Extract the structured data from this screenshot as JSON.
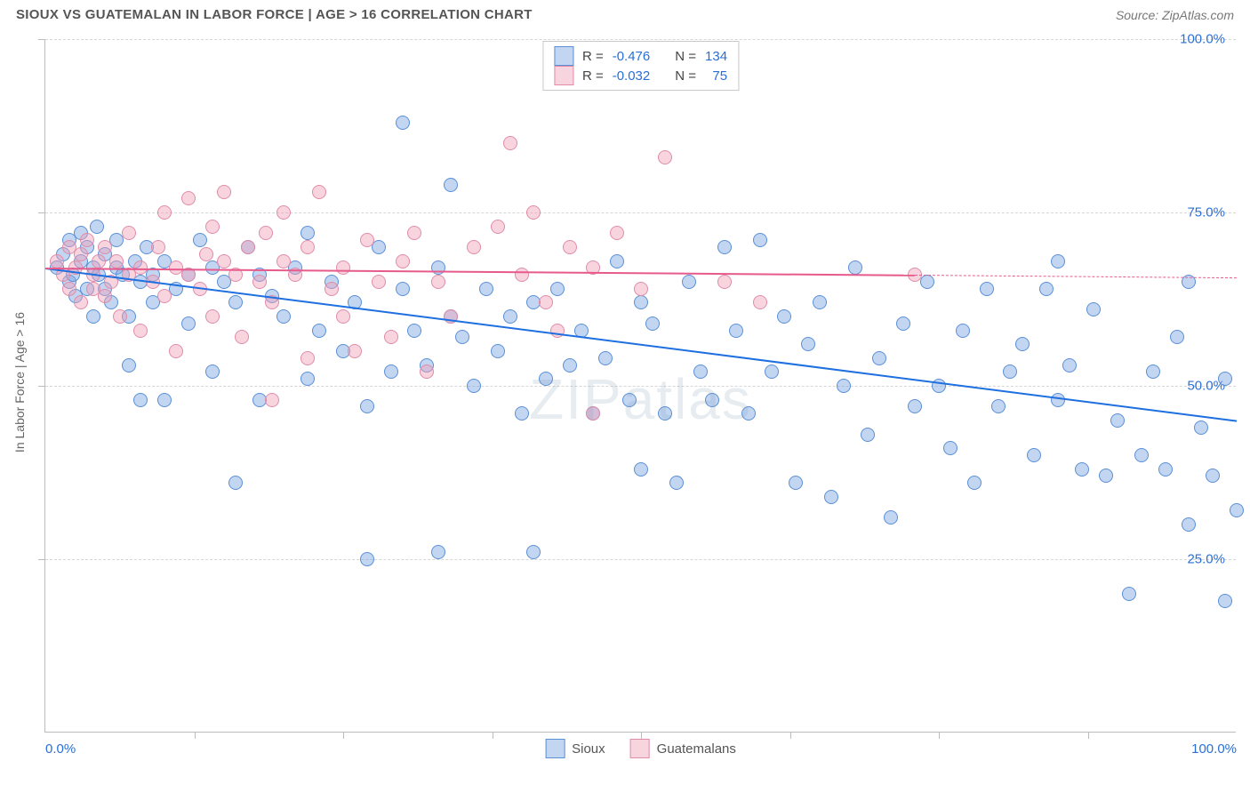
{
  "title": "SIOUX VS GUATEMALAN IN LABOR FORCE | AGE > 16 CORRELATION CHART",
  "source": "Source: ZipAtlas.com",
  "ylabel": "In Labor Force | Age > 16",
  "watermark": "ZIPatlas",
  "correlation_chart": {
    "type": "scatter",
    "xlim": [
      0,
      100
    ],
    "ylim": [
      0,
      100
    ],
    "x_ticks_major": [
      0,
      100
    ],
    "x_ticks_minor": [
      12.5,
      25,
      37.5,
      50,
      62.5,
      75,
      87.5
    ],
    "y_gridlines": [
      25,
      50,
      75,
      100
    ],
    "x_tick_labels": {
      "0": "0.0%",
      "100": "100.0%"
    },
    "y_tick_labels": {
      "25": "25.0%",
      "50": "50.0%",
      "75": "75.0%",
      "100": "100.0%"
    },
    "background_color": "#ffffff",
    "grid_color": "#d6d6d6",
    "axis_color": "#bcbcbc",
    "tick_label_color": "#2a6fd6",
    "marker_radius": 8,
    "marker_border_width": 1,
    "series": [
      {
        "name": "Sioux",
        "fill_color": "rgba(120,163,226,0.45)",
        "stroke_color": "#5b8fd6",
        "R": "-0.476",
        "N": "134",
        "trend": {
          "x1": 0,
          "y1": 67,
          "x2": 100,
          "y2": 45,
          "color": "#1e6fe0",
          "width": 2
        },
        "points": [
          [
            1,
            67
          ],
          [
            1.5,
            69
          ],
          [
            2,
            65
          ],
          [
            2,
            71
          ],
          [
            2.3,
            66
          ],
          [
            2.5,
            63
          ],
          [
            3,
            68
          ],
          [
            3,
            72
          ],
          [
            3.5,
            70
          ],
          [
            3.5,
            64
          ],
          [
            4,
            67
          ],
          [
            4,
            60
          ],
          [
            4.3,
            73
          ],
          [
            4.5,
            66
          ],
          [
            5,
            64
          ],
          [
            5,
            69
          ],
          [
            5.5,
            62
          ],
          [
            6,
            71
          ],
          [
            6,
            67
          ],
          [
            6.5,
            66
          ],
          [
            7,
            60
          ],
          [
            7,
            53
          ],
          [
            7.5,
            68
          ],
          [
            8,
            65
          ],
          [
            8,
            48
          ],
          [
            8.5,
            70
          ],
          [
            9,
            66
          ],
          [
            9,
            62
          ],
          [
            10,
            48
          ],
          [
            10,
            68
          ],
          [
            11,
            64
          ],
          [
            12,
            66
          ],
          [
            12,
            59
          ],
          [
            13,
            71
          ],
          [
            14,
            52
          ],
          [
            14,
            67
          ],
          [
            15,
            65
          ],
          [
            16,
            36
          ],
          [
            16,
            62
          ],
          [
            17,
            70
          ],
          [
            18,
            48
          ],
          [
            18,
            66
          ],
          [
            19,
            63
          ],
          [
            20,
            60
          ],
          [
            21,
            67
          ],
          [
            22,
            51
          ],
          [
            22,
            72
          ],
          [
            23,
            58
          ],
          [
            24,
            65
          ],
          [
            25,
            55
          ],
          [
            26,
            62
          ],
          [
            27,
            47
          ],
          [
            27,
            25
          ],
          [
            28,
            70
          ],
          [
            29,
            52
          ],
          [
            30,
            64
          ],
          [
            30,
            88
          ],
          [
            31,
            58
          ],
          [
            32,
            53
          ],
          [
            33,
            26
          ],
          [
            33,
            67
          ],
          [
            34,
            79
          ],
          [
            34,
            60
          ],
          [
            35,
            57
          ],
          [
            36,
            50
          ],
          [
            37,
            64
          ],
          [
            38,
            55
          ],
          [
            39,
            60
          ],
          [
            40,
            46
          ],
          [
            41,
            26
          ],
          [
            41,
            62
          ],
          [
            42,
            51
          ],
          [
            43,
            64
          ],
          [
            44,
            53
          ],
          [
            45,
            58
          ],
          [
            46,
            46
          ],
          [
            47,
            54
          ],
          [
            48,
            68
          ],
          [
            49,
            48
          ],
          [
            50,
            38
          ],
          [
            50,
            62
          ],
          [
            51,
            59
          ],
          [
            52,
            46
          ],
          [
            53,
            36
          ],
          [
            54,
            65
          ],
          [
            55,
            52
          ],
          [
            56,
            48
          ],
          [
            57,
            70
          ],
          [
            58,
            58
          ],
          [
            59,
            46
          ],
          [
            60,
            71
          ],
          [
            61,
            52
          ],
          [
            62,
            60
          ],
          [
            63,
            36
          ],
          [
            64,
            56
          ],
          [
            65,
            62
          ],
          [
            66,
            34
          ],
          [
            67,
            50
          ],
          [
            68,
            67
          ],
          [
            69,
            43
          ],
          [
            70,
            54
          ],
          [
            71,
            31
          ],
          [
            72,
            59
          ],
          [
            73,
            47
          ],
          [
            74,
            65
          ],
          [
            75,
            50
          ],
          [
            76,
            41
          ],
          [
            77,
            58
          ],
          [
            78,
            36
          ],
          [
            79,
            64
          ],
          [
            80,
            47
          ],
          [
            81,
            52
          ],
          [
            82,
            56
          ],
          [
            83,
            40
          ],
          [
            84,
            64
          ],
          [
            85,
            48
          ],
          [
            86,
            53
          ],
          [
            87,
            38
          ],
          [
            88,
            61
          ],
          [
            89,
            37
          ],
          [
            90,
            45
          ],
          [
            91,
            20
          ],
          [
            92,
            40
          ],
          [
            93,
            52
          ],
          [
            94,
            38
          ],
          [
            95,
            57
          ],
          [
            96,
            30
          ],
          [
            97,
            44
          ],
          [
            98,
            37
          ],
          [
            99,
            51
          ],
          [
            99,
            19
          ],
          [
            100,
            32
          ],
          [
            96,
            65
          ],
          [
            85,
            68
          ]
        ]
      },
      {
        "name": "Guatemalans",
        "fill_color": "rgba(240,160,185,0.45)",
        "stroke_color": "#e08ca8",
        "R": "-0.032",
        "N": "75",
        "trend": {
          "x1": 0,
          "y1": 67,
          "x2": 73,
          "y2": 66,
          "color": "#e75a8c",
          "width": 2
        },
        "trend_dash": {
          "x1": 73,
          "y1": 66,
          "x2": 100,
          "y2": 65.6,
          "color": "#e75a8c"
        },
        "points": [
          [
            1,
            68
          ],
          [
            1.5,
            66
          ],
          [
            2,
            70
          ],
          [
            2,
            64
          ],
          [
            2.5,
            67
          ],
          [
            3,
            69
          ],
          [
            3,
            62
          ],
          [
            3.5,
            71
          ],
          [
            4,
            66
          ],
          [
            4,
            64
          ],
          [
            4.5,
            68
          ],
          [
            5,
            63
          ],
          [
            5,
            70
          ],
          [
            5.5,
            65
          ],
          [
            6,
            68
          ],
          [
            6.3,
            60
          ],
          [
            7,
            72
          ],
          [
            7,
            66
          ],
          [
            8,
            67
          ],
          [
            8,
            58
          ],
          [
            9,
            65
          ],
          [
            9.5,
            70
          ],
          [
            10,
            63
          ],
          [
            10,
            75
          ],
          [
            11,
            67
          ],
          [
            11,
            55
          ],
          [
            12,
            77
          ],
          [
            12,
            66
          ],
          [
            13,
            64
          ],
          [
            13.5,
            69
          ],
          [
            14,
            73
          ],
          [
            14,
            60
          ],
          [
            15,
            68
          ],
          [
            15,
            78
          ],
          [
            16,
            66
          ],
          [
            16.5,
            57
          ],
          [
            17,
            70
          ],
          [
            18,
            65
          ],
          [
            18.5,
            72
          ],
          [
            19,
            62
          ],
          [
            19,
            48
          ],
          [
            20,
            75
          ],
          [
            20,
            68
          ],
          [
            21,
            66
          ],
          [
            22,
            54
          ],
          [
            22,
            70
          ],
          [
            23,
            78
          ],
          [
            24,
            64
          ],
          [
            25,
            60
          ],
          [
            25,
            67
          ],
          [
            26,
            55
          ],
          [
            27,
            71
          ],
          [
            28,
            65
          ],
          [
            29,
            57
          ],
          [
            30,
            68
          ],
          [
            31,
            72
          ],
          [
            32,
            52
          ],
          [
            33,
            65
          ],
          [
            34,
            60
          ],
          [
            36,
            70
          ],
          [
            38,
            73
          ],
          [
            39,
            85
          ],
          [
            40,
            66
          ],
          [
            41,
            75
          ],
          [
            42,
            62
          ],
          [
            44,
            70
          ],
          [
            43,
            58
          ],
          [
            46,
            67
          ],
          [
            48,
            72
          ],
          [
            46,
            46
          ],
          [
            50,
            64
          ],
          [
            52,
            83
          ],
          [
            57,
            65
          ],
          [
            60,
            62
          ],
          [
            73,
            66
          ]
        ]
      }
    ],
    "legend_top": {
      "rows": [
        {
          "swatch_fill": "rgba(120,163,226,0.45)",
          "swatch_stroke": "#5b8fd6",
          "r_label": "R =",
          "r_val": "-0.476",
          "n_label": "N =",
          "n_val": "134"
        },
        {
          "swatch_fill": "rgba(240,160,185,0.45)",
          "swatch_stroke": "#e08ca8",
          "r_label": "R =",
          "r_val": "-0.032",
          "n_label": "N =",
          "n_val": "  75"
        }
      ]
    },
    "legend_bottom": [
      {
        "swatch_fill": "rgba(120,163,226,0.45)",
        "swatch_stroke": "#5b8fd6",
        "label": "Sioux"
      },
      {
        "swatch_fill": "rgba(240,160,185,0.45)",
        "swatch_stroke": "#e08ca8",
        "label": "Guatemalans"
      }
    ]
  }
}
